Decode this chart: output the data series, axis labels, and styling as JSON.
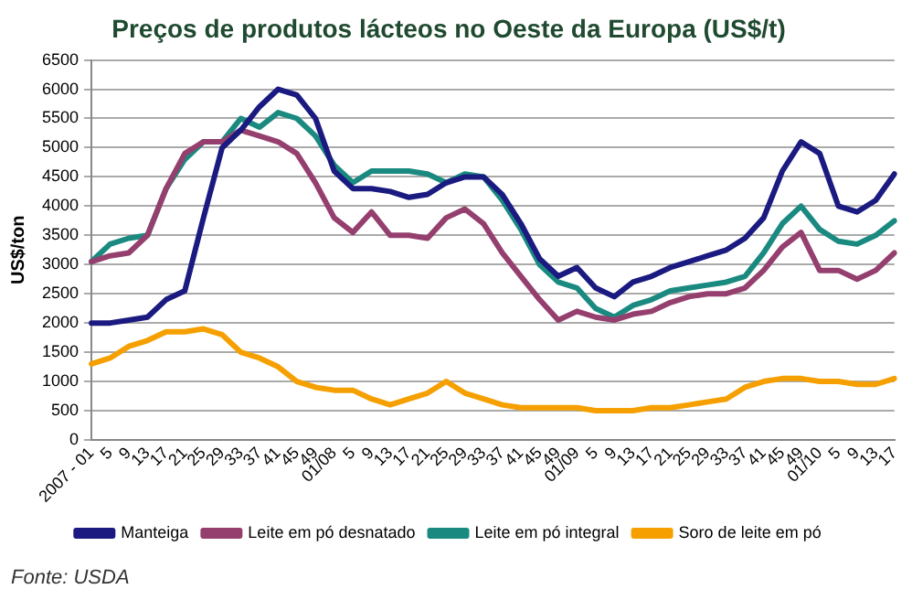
{
  "chart_data": {
    "type": "line",
    "title": "Preços de produtos lácteos no Oeste da Europa (US$/t)",
    "ylabel": "US$/ton",
    "categories": [
      "2007 - 01",
      "5",
      "9",
      "13",
      "17",
      "21",
      "25",
      "29",
      "33",
      "37",
      "41",
      "45",
      "49",
      "01/08",
      "5",
      "9",
      "13",
      "17",
      "21",
      "25",
      "29",
      "33",
      "37",
      "41",
      "45",
      "49",
      "01/09",
      "5",
      "9",
      "13",
      "17",
      "21",
      "25",
      "29",
      "33",
      "37",
      "41",
      "45",
      "49",
      "01/10",
      "5",
      "9",
      "13",
      "17"
    ],
    "series": [
      {
        "name": "Manteiga",
        "color": "#1a1a80",
        "values": [
          2000,
          2000,
          2050,
          2100,
          2400,
          2550,
          3800,
          5000,
          5300,
          5700,
          6000,
          5900,
          5500,
          4600,
          4300,
          4300,
          4250,
          4150,
          4200,
          4400,
          4500,
          4500,
          4200,
          3700,
          3100,
          2800,
          2950,
          2600,
          2450,
          2700,
          2800,
          2950,
          3050,
          3150,
          3250,
          3450,
          3800,
          4600,
          5100,
          4900,
          4000,
          3900,
          4100,
          4550
        ]
      },
      {
        "name": "Leite em pó desnatado",
        "color": "#953f6f",
        "values": [
          3050,
          3150,
          3200,
          3500,
          4300,
          4900,
          5100,
          5100,
          5300,
          5200,
          5100,
          4900,
          4400,
          3800,
          3550,
          3900,
          3500,
          3500,
          3450,
          3800,
          3950,
          3700,
          3200,
          2800,
          2400,
          2050,
          2200,
          2100,
          2050,
          2150,
          2200,
          2350,
          2450,
          2500,
          2500,
          2600,
          2900,
          3300,
          3550,
          2900,
          2900,
          2750,
          2900,
          3200
        ]
      },
      {
        "name": "Leite em pó integral",
        "color": "#1a8a80",
        "values": [
          3050,
          3350,
          3450,
          3500,
          4300,
          4800,
          5100,
          5100,
          5500,
          5350,
          5600,
          5500,
          5200,
          4700,
          4400,
          4600,
          4600,
          4600,
          4550,
          4400,
          4550,
          4500,
          4100,
          3600,
          3000,
          2700,
          2600,
          2250,
          2100,
          2300,
          2400,
          2550,
          2600,
          2650,
          2700,
          2800,
          3200,
          3700,
          4000,
          3600,
          3400,
          3350,
          3500,
          3750
        ]
      },
      {
        "name": "Soro de leite em pó",
        "color": "#f5a000",
        "values": [
          1300,
          1400,
          1600,
          1700,
          1850,
          1850,
          1900,
          1800,
          1500,
          1400,
          1250,
          1000,
          900,
          850,
          850,
          700,
          600,
          700,
          800,
          1000,
          800,
          700,
          600,
          550,
          550,
          550,
          550,
          500,
          500,
          500,
          550,
          550,
          600,
          650,
          700,
          900,
          1000,
          1050,
          1050,
          1000,
          1000,
          950,
          950,
          1050
        ]
      }
    ],
    "ylim": [
      0,
      6500
    ],
    "yticks": [
      0,
      500,
      1000,
      1500,
      2000,
      2500,
      3000,
      3500,
      4000,
      4500,
      5000,
      5500,
      6000,
      6500
    ],
    "grid": "y",
    "legend": "bottom",
    "marker": "none",
    "line_style": "solid",
    "annotations": [
      "Fonte: USDA"
    ]
  }
}
